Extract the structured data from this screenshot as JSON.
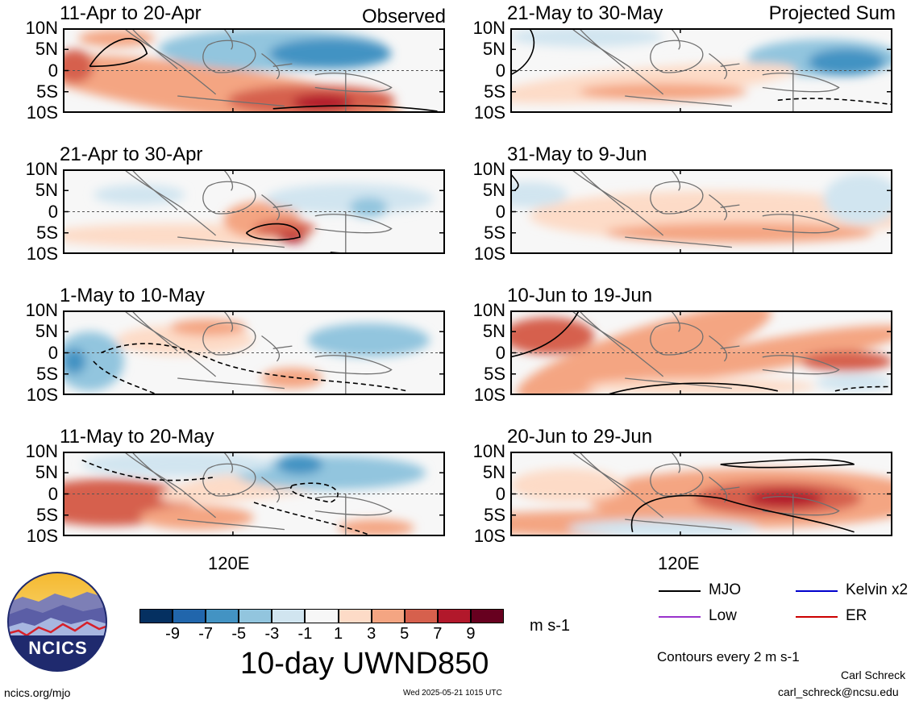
{
  "chart_data": {
    "type": "heatmap",
    "variable_title": "10-day UWND850",
    "units": "m s-1",
    "contour_note": "Contours every 2 m s-1",
    "y_tick_labels": [
      "10N",
      "5N",
      "0",
      "5S",
      "10S"
    ],
    "x_tick_label": "120E",
    "column_headers": {
      "left": "Observed",
      "right": "Projected Sum"
    },
    "colorbar": {
      "labels": [
        "-9",
        "-7",
        "-5",
        "-3",
        "-1",
        "1",
        "3",
        "5",
        "7",
        "9"
      ],
      "colors": [
        "#053061",
        "#2166ac",
        "#4393c3",
        "#92c5de",
        "#d1e5f0",
        "#f7f7f7",
        "#fddbc7",
        "#f4a582",
        "#d6604d",
        "#b2182b",
        "#67001f"
      ]
    },
    "legend": [
      {
        "label": "MJO",
        "color": "#000000"
      },
      {
        "label": "Kelvin x2",
        "color": "#0000cc"
      },
      {
        "label": "Low",
        "color": "#9933cc"
      },
      {
        "label": "ER",
        "color": "#cc0000"
      }
    ],
    "panels": [
      {
        "period": "11-Apr to 20-Apr",
        "column": "Observed"
      },
      {
        "period": "21-Apr to 30-Apr",
        "column": "Observed"
      },
      {
        "period": "1-May to 10-May",
        "column": "Observed"
      },
      {
        "period": "11-May to 20-May",
        "column": "Observed"
      },
      {
        "period": "21-May to 30-May",
        "column": "Projected Sum"
      },
      {
        "period": "31-May to 9-Jun",
        "column": "Projected Sum"
      },
      {
        "period": "10-Jun to 19-Jun",
        "column": "Projected Sum"
      },
      {
        "period": "20-Jun to 29-Jun",
        "column": "Projected Sum"
      }
    ]
  },
  "footer": {
    "logo_text": "NCICS",
    "site": "ncics.org/mjo",
    "timestamp": "Wed 2025-05-21 1015 UTC",
    "author": "Carl Schreck",
    "email": "carl_schreck@ncsu.edu"
  }
}
